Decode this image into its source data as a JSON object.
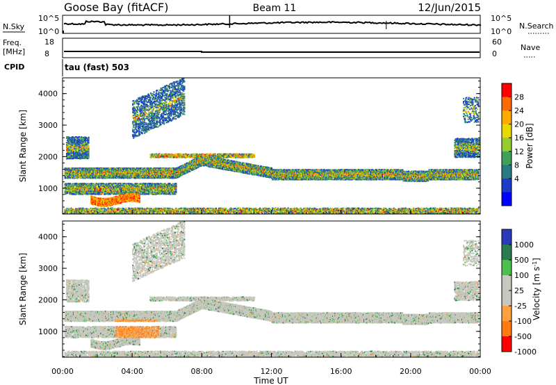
{
  "header": {
    "station": "Goose Bay (fitACF)",
    "beam": "Beam 11",
    "date": "12/Jun/2015"
  },
  "noise_panel": {
    "left_label": "N.Sky",
    "right_label": "N.Search",
    "tick_top": "10^5",
    "tick_bottom": "10^0"
  },
  "freq_panel": {
    "left_label_1": "Freq.",
    "left_label_2": "[MHz]",
    "right_label": "Nave",
    "left_ticks": [
      "18",
      "8"
    ],
    "right_ticks": [
      "60",
      "0"
    ]
  },
  "cpid": {
    "label": "CPID",
    "value": "tau (fast) 503"
  },
  "chart_data": [
    {
      "type": "heatmap",
      "name": "power",
      "ylabel": "Slant Range [km]",
      "xlabel": "",
      "ylim": [
        180,
        4500
      ],
      "yticks": [
        "1000",
        "2000",
        "3000",
        "4000"
      ],
      "colorbar": {
        "label": "Power [dB]",
        "ticks": [
          "28",
          "24",
          "20",
          "16",
          "12",
          "8",
          "4"
        ],
        "colors": [
          "#ff0000",
          "#ff6a00",
          "#ffaa00",
          "#e8d800",
          "#96cc2e",
          "#3fa05c",
          "#2a7a86",
          "#1a3cc8",
          "#0000ff"
        ]
      }
    },
    {
      "type": "heatmap",
      "name": "velocity",
      "ylabel": "Slant Range [km]",
      "xlabel": "Time UT",
      "ylim": [
        180,
        4500
      ],
      "yticks": [
        "1000",
        "2000",
        "3000",
        "4000"
      ],
      "xticks": [
        "00:00",
        "04:00",
        "08:00",
        "12:00",
        "16:00",
        "20:00",
        "00:00"
      ],
      "colorbar": {
        "label": "Velocity [m s",
        "label_sup": "-1",
        "label_end": "]",
        "ticks": [
          "1000",
          "500",
          "100",
          "25",
          "-25",
          "-100",
          "-500",
          "-1000"
        ],
        "colors": [
          "#2a3ab8",
          "#2a7a52",
          "#4cc04c",
          "#c8c8c0",
          "#c8c8c0",
          "#ffa040",
          "#ff7a10",
          "#ff0000"
        ]
      }
    }
  ]
}
